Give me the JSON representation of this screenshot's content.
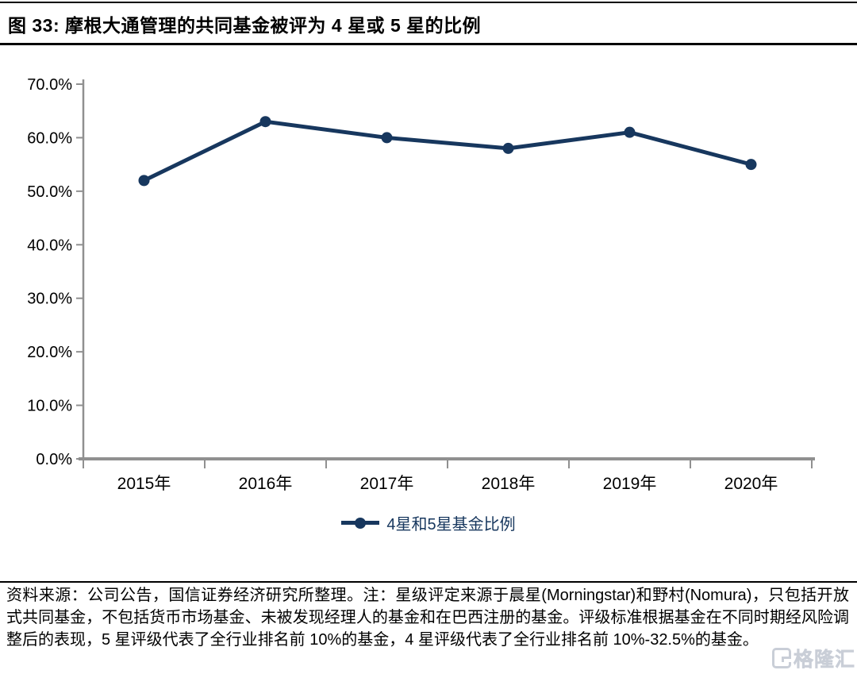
{
  "figure": {
    "title": "图 33: 摩根大通管理的共同基金被评为 4 星或 5 星的比例",
    "source_note": "资料来源：公司公告，国信证券经济研究所整理。注：星级评定来源于晨星(Morningstar)和野村(Nomura)，只包括开放式共同基金，不包括货币市场基金、未被发现经理人的基金和在巴西注册的基金。评级标准根据基金在不同时期经风险调整后的表现，5 星评级代表了全行业排名前 10%的基金，4 星评级代表了全行业排名前 10%-32.5%的基金。",
    "watermark_text": "格隆汇"
  },
  "chart_data": {
    "type": "line",
    "title": "摩根大通管理的共同基金被评为 4 星或 5 星的比例",
    "categories": [
      "2015年",
      "2016年",
      "2017年",
      "2018年",
      "2019年",
      "2020年"
    ],
    "series": [
      {
        "name": "4星和5星基金比例",
        "values": [
          52,
          63,
          60,
          58,
          61,
          55
        ]
      }
    ],
    "value_unit": "%",
    "ylim": [
      0,
      70
    ],
    "ytick_step": 10,
    "ytick_labels": [
      "0.0%",
      "10.0%",
      "20.0%",
      "30.0%",
      "40.0%",
      "50.0%",
      "60.0%",
      "70.0%"
    ],
    "legend_entries": [
      "4星和5星基金比例"
    ],
    "legend_position": "bottom-center",
    "grid": false,
    "colors": {
      "series": "#17375e",
      "axis": "#909090",
      "tick_text": "#000000",
      "legend_text": "#17375e"
    }
  }
}
